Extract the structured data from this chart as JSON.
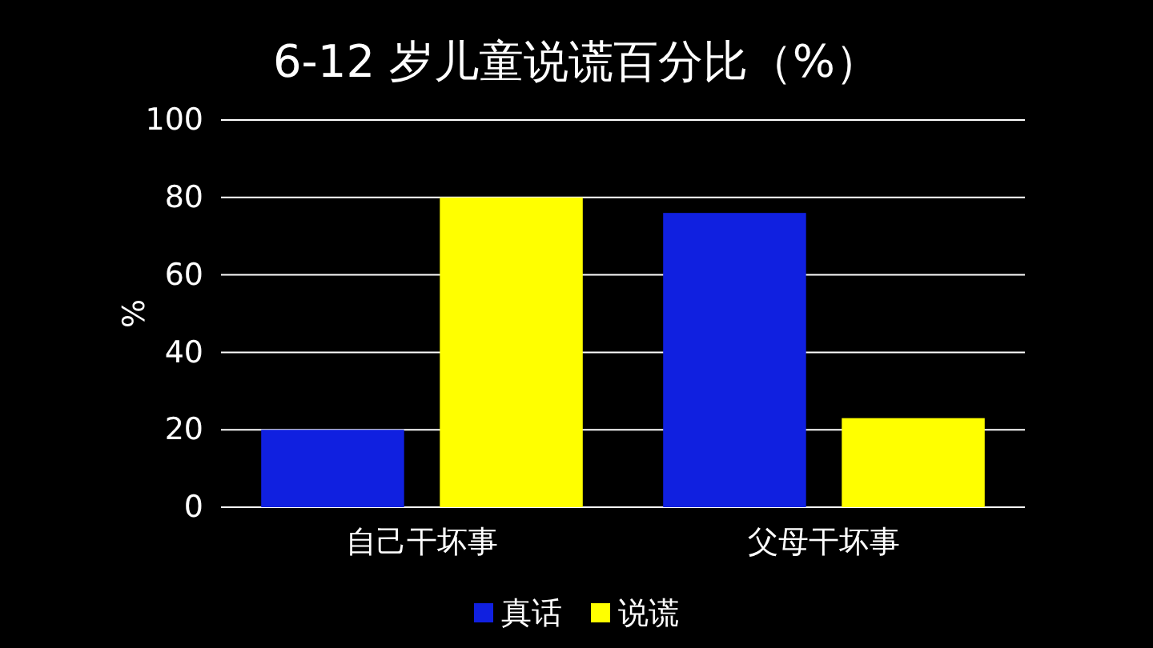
{
  "chart_data": {
    "type": "bar",
    "title": "6-12 岁儿童说谎百分比（%）",
    "ylabel": "%",
    "categories": [
      "自己干坏事",
      "父母干坏事"
    ],
    "series": [
      {
        "name": "真话",
        "color": "#1020e0",
        "values": [
          20,
          76
        ]
      },
      {
        "name": "说谎",
        "color": "#ffff00",
        "values": [
          80,
          23
        ]
      }
    ],
    "ylim": [
      0,
      100
    ],
    "yticks": [
      0,
      20,
      40,
      60,
      80,
      100
    ],
    "grid": "y",
    "legend": "bottom"
  }
}
